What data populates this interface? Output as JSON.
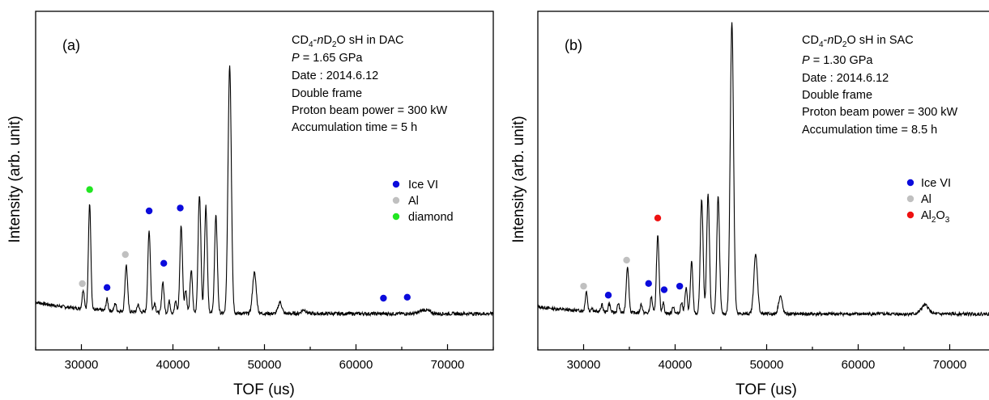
{
  "chart_data": [
    {
      "type": "line",
      "panel_label": "(a)",
      "xlabel": "TOF (us)",
      "ylabel": "Intensity  (arb. unit)",
      "xlim": [
        25000,
        75000
      ],
      "x_ticks": [
        30000,
        40000,
        50000,
        60000,
        70000
      ],
      "y_ticks_shown": false,
      "grid": false,
      "legend_position": "center-right",
      "info": {
        "line1_pre": "CD",
        "line1_sub1": "4",
        "line1_mid1": "-",
        "line1_italic": "n",
        "line1_mid2": "D",
        "line1_sub2": "2",
        "line1_post": "O sH in DAC",
        "pressure_symbol": "P",
        "pressure_value": " = 1.65 GPa",
        "date": "Date : 2014.6.12",
        "frame": "Double frame",
        "beam": "Proton beam power = 300 kW",
        "accumulation": "Accumulation time = 5 h"
      },
      "baseline": 0.06,
      "peaks": [
        {
          "x": 30200,
          "h": 0.1,
          "w": 120
        },
        {
          "x": 30900,
          "h": 0.55,
          "w": 130
        },
        {
          "x": 32800,
          "h": 0.06,
          "w": 110
        },
        {
          "x": 33700,
          "h": 0.04,
          "w": 110
        },
        {
          "x": 34900,
          "h": 0.24,
          "w": 140
        },
        {
          "x": 36200,
          "h": 0.04,
          "w": 110
        },
        {
          "x": 37400,
          "h": 0.42,
          "w": 140
        },
        {
          "x": 38000,
          "h": 0.05,
          "w": 110
        },
        {
          "x": 38900,
          "h": 0.16,
          "w": 120
        },
        {
          "x": 39600,
          "h": 0.06,
          "w": 110
        },
        {
          "x": 40300,
          "h": 0.06,
          "w": 110
        },
        {
          "x": 40900,
          "h": 0.45,
          "w": 140
        },
        {
          "x": 41400,
          "h": 0.12,
          "w": 120
        },
        {
          "x": 42000,
          "h": 0.22,
          "w": 130
        },
        {
          "x": 42900,
          "h": 0.61,
          "w": 150
        },
        {
          "x": 43600,
          "h": 0.55,
          "w": 150
        },
        {
          "x": 44700,
          "h": 0.5,
          "w": 150
        },
        {
          "x": 46200,
          "h": 1.28,
          "w": 180
        },
        {
          "x": 48900,
          "h": 0.21,
          "w": 200
        },
        {
          "x": 51700,
          "h": 0.06,
          "w": 200
        },
        {
          "x": 54300,
          "h": 0.02,
          "w": 250
        },
        {
          "x": 67500,
          "h": 0.02,
          "w": 500
        }
      ],
      "markers": [
        {
          "series": "Al",
          "x": 30100,
          "y": 0.175
        },
        {
          "series": "diamond",
          "x": 30900,
          "y": 0.66
        },
        {
          "series": "Ice VI",
          "x": 32800,
          "y": 0.155
        },
        {
          "series": "Al",
          "x": 34800,
          "y": 0.325
        },
        {
          "series": "Ice VI",
          "x": 37400,
          "y": 0.55
        },
        {
          "series": "Ice VI",
          "x": 39000,
          "y": 0.28
        },
        {
          "series": "Ice VI",
          "x": 40800,
          "y": 0.565
        },
        {
          "series": "Ice VI",
          "x": 63000,
          "y": 0.1
        },
        {
          "series": "Ice VI",
          "x": 65600,
          "y": 0.105
        }
      ],
      "legend": [
        {
          "name": "Ice VI",
          "color": "#0b0bdc"
        },
        {
          "name": "Al",
          "color": "#c0c0c0"
        },
        {
          "name": "diamond",
          "color": "#22e622"
        }
      ]
    },
    {
      "type": "line",
      "panel_label": "(b)",
      "xlabel": "TOF (us)",
      "ylabel": "Intensity  (arb. unit)",
      "xlim": [
        25000,
        75000
      ],
      "x_ticks": [
        30000,
        40000,
        50000,
        60000,
        70000
      ],
      "y_ticks_shown": false,
      "grid": false,
      "legend_position": "center-right",
      "info": {
        "line1_pre": "CD",
        "line1_sub1": "4",
        "line1_mid1": "-",
        "line1_italic": "n",
        "line1_mid2": "D",
        "line1_sub2": "2",
        "line1_post": "O sH in SAC",
        "pressure_symbol": "P",
        "pressure_value": " = 1.30 GPa",
        "date": "Date : 2014.6.12",
        "frame": "Double frame",
        "beam": "Proton beam power = 300 kW",
        "accumulation": "Accumulation time = 8.5 h"
      },
      "baseline": 0.04,
      "peaks": [
        {
          "x": 30300,
          "h": 0.11,
          "w": 120
        },
        {
          "x": 30900,
          "h": 0.02,
          "w": 110
        },
        {
          "x": 32000,
          "h": 0.04,
          "w": 110
        },
        {
          "x": 32800,
          "h": 0.05,
          "w": 110
        },
        {
          "x": 33800,
          "h": 0.05,
          "w": 110
        },
        {
          "x": 34800,
          "h": 0.26,
          "w": 140
        },
        {
          "x": 36300,
          "h": 0.05,
          "w": 110
        },
        {
          "x": 37400,
          "h": 0.09,
          "w": 120
        },
        {
          "x": 38100,
          "h": 0.43,
          "w": 140
        },
        {
          "x": 38700,
          "h": 0.06,
          "w": 110
        },
        {
          "x": 39800,
          "h": 0.04,
          "w": 110
        },
        {
          "x": 40700,
          "h": 0.06,
          "w": 120
        },
        {
          "x": 41200,
          "h": 0.14,
          "w": 130
        },
        {
          "x": 41800,
          "h": 0.29,
          "w": 130
        },
        {
          "x": 42900,
          "h": 0.64,
          "w": 150
        },
        {
          "x": 43600,
          "h": 0.66,
          "w": 150
        },
        {
          "x": 44700,
          "h": 0.65,
          "w": 150
        },
        {
          "x": 46200,
          "h": 1.63,
          "w": 180
        },
        {
          "x": 48800,
          "h": 0.33,
          "w": 200
        },
        {
          "x": 51500,
          "h": 0.1,
          "w": 200
        },
        {
          "x": 67300,
          "h": 0.05,
          "w": 400
        }
      ],
      "markers": [
        {
          "series": "Al",
          "x": 30000,
          "y": 0.175
        },
        {
          "series": "Ice VI",
          "x": 32700,
          "y": 0.125
        },
        {
          "series": "Al",
          "x": 34700,
          "y": 0.32
        },
        {
          "series": "Ice VI",
          "x": 37100,
          "y": 0.19
        },
        {
          "series": "Al2O3",
          "x": 38100,
          "y": 0.555
        },
        {
          "series": "Ice VI",
          "x": 38800,
          "y": 0.155
        },
        {
          "series": "Ice VI",
          "x": 40500,
          "y": 0.175
        }
      ],
      "legend": [
        {
          "name": "Ice VI",
          "color": "#0b0bdc"
        },
        {
          "name": "Al",
          "color": "#c0c0c0"
        },
        {
          "name_pre": "Al",
          "name_sub1": "2",
          "name_mid": "O",
          "name_sub2": "3",
          "color": "#ee1111"
        }
      ]
    }
  ]
}
